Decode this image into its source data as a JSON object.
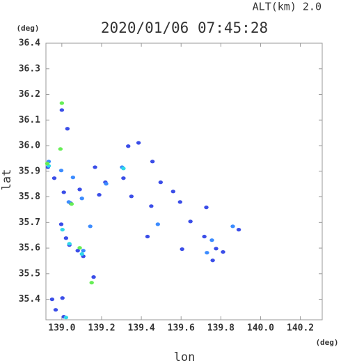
{
  "chart_data": {
    "type": "scatter",
    "title": "2020/01/06 07:45:28",
    "subtitle": "ALT(km) 2.0",
    "x_label": "lon",
    "y_label": "lat",
    "x_unit": "(deg)",
    "y_unit": "(deg)",
    "xlim": [
      138.92,
      140.31
    ],
    "ylim": [
      35.32,
      36.4
    ],
    "xticks": [
      {
        "value": 139.0,
        "label": "139.0"
      },
      {
        "value": 139.2,
        "label": "139.2"
      },
      {
        "value": 139.4,
        "label": "139.4"
      },
      {
        "value": 139.6,
        "label": "139.6"
      },
      {
        "value": 139.8,
        "label": "139.8"
      },
      {
        "value": 140.0,
        "label": "140.0"
      },
      {
        "value": 140.2,
        "label": "140.2"
      }
    ],
    "yticks": [
      {
        "value": 35.4,
        "label": "35.4"
      },
      {
        "value": 35.5,
        "label": "35.5"
      },
      {
        "value": 35.6,
        "label": "35.6"
      },
      {
        "value": 35.7,
        "label": "35.7"
      },
      {
        "value": 35.8,
        "label": "35.8"
      },
      {
        "value": 35.9,
        "label": "35.9"
      },
      {
        "value": 36.0,
        "label": "36.0"
      },
      {
        "value": 36.1,
        "label": "36.1"
      },
      {
        "value": 36.2,
        "label": "36.2"
      },
      {
        "value": 36.3,
        "label": "36.3"
      },
      {
        "value": 36.4,
        "label": "36.4"
      }
    ],
    "grid": false,
    "series": [
      {
        "color": "#3a4de8",
        "x": [
          139.0,
          139.028,
          138.93,
          138.962,
          139.01,
          139.045,
          138.997,
          139.021,
          139.038,
          139.08,
          139.108,
          138.951,
          139.003,
          138.969,
          139.01,
          139.16,
          139.167,
          139.09,
          139.188,
          139.219,
          139.334,
          139.31,
          139.35,
          139.386,
          139.456,
          139.497,
          139.45,
          139.56,
          139.595,
          139.647,
          139.605,
          139.717,
          139.776,
          139.811,
          139.759,
          139.89,
          139.727,
          139.431
        ],
        "values": [
          36.139,
          36.066,
          35.916,
          35.873,
          35.818,
          35.775,
          35.693,
          35.639,
          35.612,
          35.59,
          35.568,
          35.4,
          35.405,
          35.359,
          35.332,
          35.487,
          35.916,
          35.829,
          35.808,
          35.857,
          35.998,
          35.873,
          35.802,
          36.011,
          35.938,
          35.857,
          35.764,
          35.821,
          35.78,
          35.704,
          35.596,
          35.645,
          35.598,
          35.585,
          35.552,
          35.672,
          35.759,
          35.645
        ]
      },
      {
        "color": "#3c8cff",
        "x": [
          138.934,
          139.035,
          139.108,
          139.143,
          139.303,
          139.223,
          139.483,
          139.86,
          139.755,
          139.73,
          139.101,
          139.056,
          138.997
        ],
        "values": [
          35.938,
          35.78,
          35.59,
          35.685,
          35.916,
          35.851,
          35.693,
          35.685,
          35.631,
          35.582,
          35.794,
          35.876,
          35.903
        ]
      },
      {
        "color": "#30d8e8",
        "x": [
          139.003,
          139.038,
          139.101,
          138.934,
          139.31,
          139.021
        ],
        "values": [
          35.672,
          35.617,
          35.577,
          35.921,
          35.911,
          35.329
        ]
      },
      {
        "color": "#66ee55",
        "x": [
          139.0,
          138.993,
          139.15,
          139.049,
          138.927,
          139.09
        ],
        "values": [
          36.166,
          35.987,
          35.465,
          35.772,
          35.93,
          35.601
        ]
      }
    ]
  }
}
